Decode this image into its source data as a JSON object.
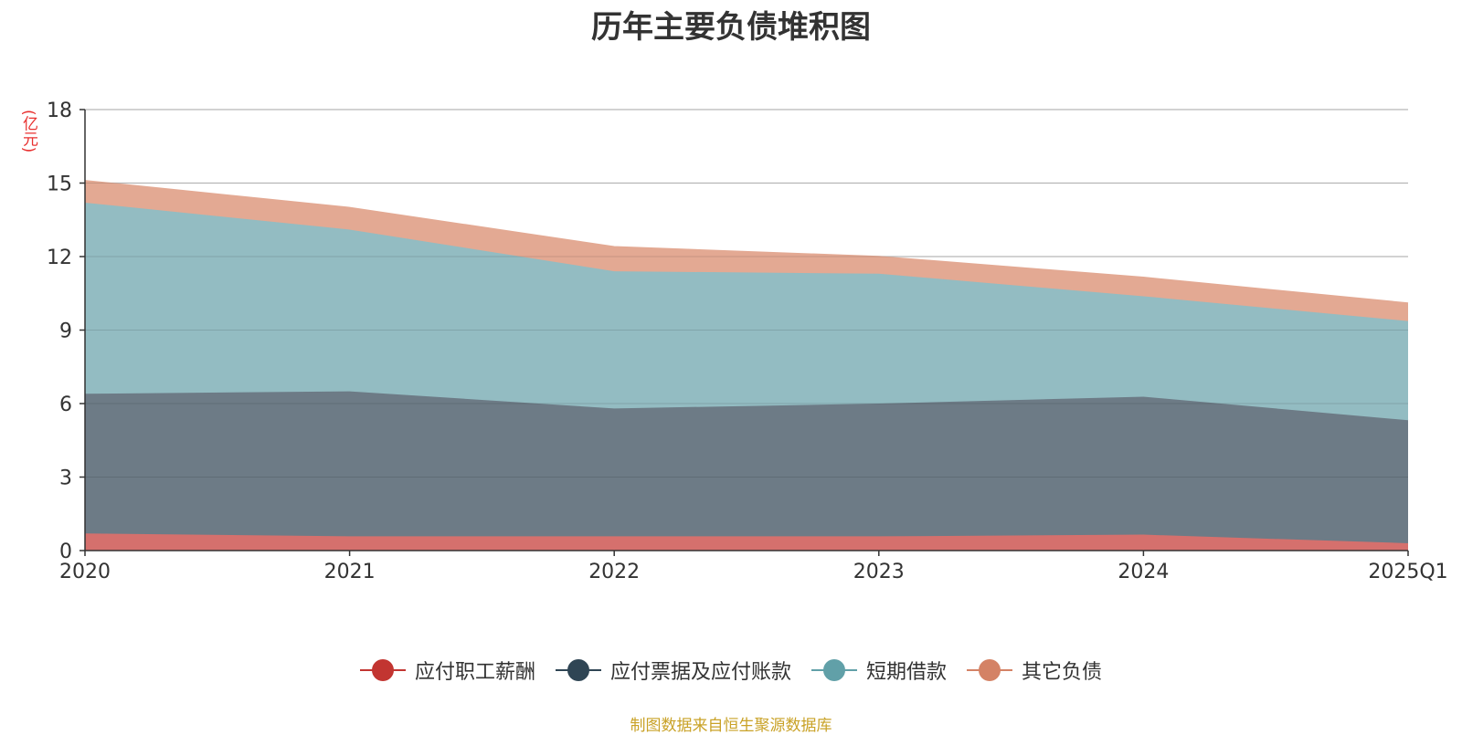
{
  "chart_data": {
    "type": "area",
    "title": "历年主要负债堆积图",
    "unit_label": "(亿元)",
    "categories": [
      "2020",
      "2021",
      "2022",
      "2023",
      "2024",
      "2025Q1"
    ],
    "ylim": [
      0,
      18
    ],
    "yticks": [
      0,
      3,
      6,
      9,
      12,
      15,
      18
    ],
    "stacked": true,
    "grid": true,
    "legend_position": "bottom",
    "series": [
      {
        "name": "应付职工薪酬",
        "values": [
          0.7,
          0.58,
          0.58,
          0.58,
          0.65,
          0.3
        ],
        "color": "#c23531",
        "fill": "#d5706d"
      },
      {
        "name": "应付票据及应付账款",
        "values": [
          5.7,
          5.92,
          5.22,
          5.42,
          5.63,
          5.02
        ],
        "color": "#2f4554",
        "fill": "#6d7b86"
      },
      {
        "name": "短期借款",
        "values": [
          7.8,
          6.6,
          5.6,
          5.3,
          4.1,
          4.05
        ],
        "color": "#61a0a8",
        "fill": "#93bcc2"
      },
      {
        "name": "其它负债",
        "values": [
          0.9,
          0.9,
          1.0,
          0.7,
          0.77,
          0.73
        ],
        "color": "#d48265",
        "fill": "#e3a993"
      }
    ],
    "source": "制图数据来自恒生聚源数据库"
  }
}
